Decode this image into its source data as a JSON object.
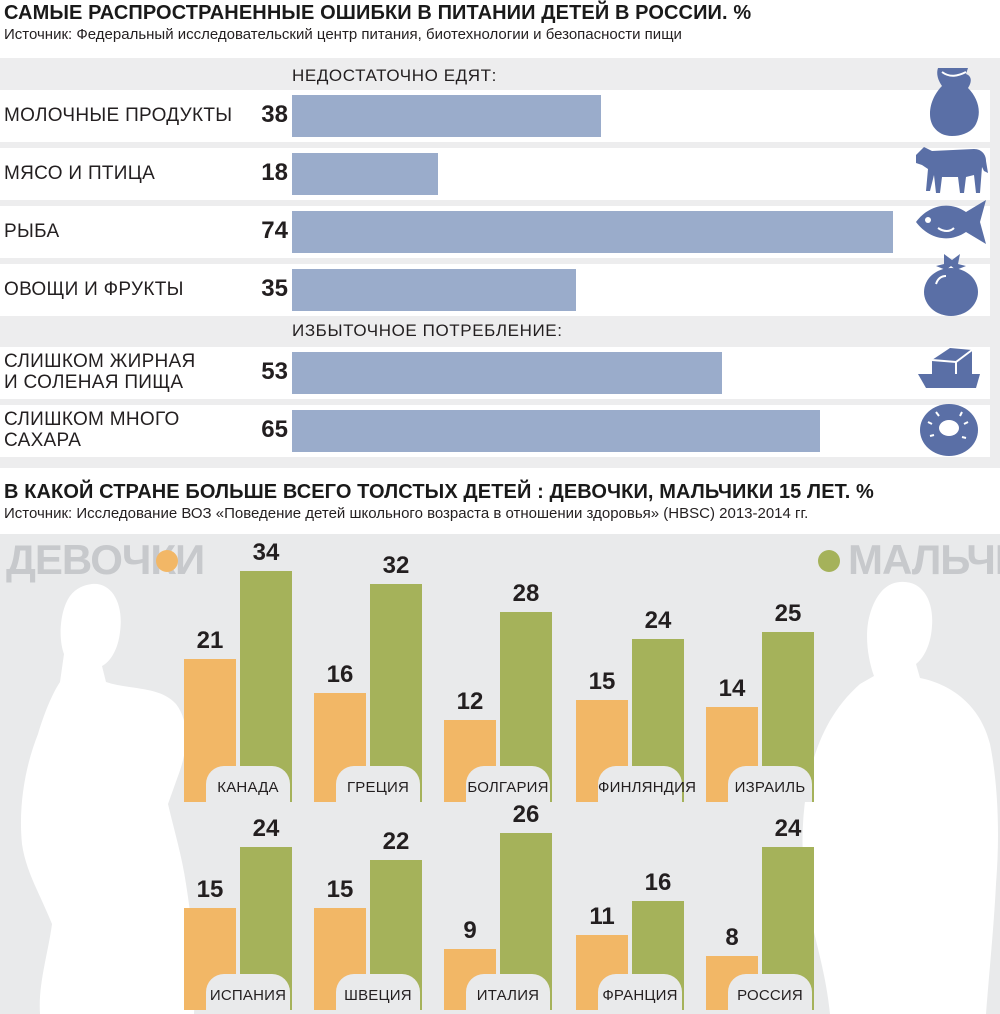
{
  "section1": {
    "title": "САМЫЕ РАСПРОСТРАНЕННЫЕ ОШИБКИ В ПИТАНИИ ДЕТЕЙ В РОССИИ. %",
    "source": "Источник:  Федеральный исследовательский центр питания, биотехнологии и безопасности пищи",
    "group1_header": "НЕДОСТАТОЧНО ЕДЯТ:",
    "group2_header": "ИЗБЫТОЧНОЕ ПОТРЕБЛЕНИЕ:",
    "rows": [
      {
        "label": "МОЛОЧНЫЕ ПРОДУКТЫ",
        "value": "38",
        "icon": "milk-jug-icon"
      },
      {
        "label": "МЯСО И ПТИЦА",
        "value": "18",
        "icon": "cow-icon"
      },
      {
        "label": "РЫБА",
        "value": "74",
        "icon": "fish-icon"
      },
      {
        "label": "ОВОЩИ И ФРУКТЫ",
        "value": "35",
        "icon": "tomato-icon"
      },
      {
        "label": "СЛИШКОМ ЖИРНАЯ\nИ СОЛЕНАЯ ПИЩА",
        "value": "53",
        "icon": "butter-icon"
      },
      {
        "label": "СЛИШКОМ МНОГО\nСАХАРА",
        "value": "65",
        "icon": "donut-icon"
      }
    ]
  },
  "section2": {
    "title": "В КАКОЙ СТРАНЕ БОЛЬШЕ ВСЕГО ТОЛСТЫХ ДЕТЕЙ : ДЕВОЧКИ, МАЛЬЧИКИ 15 ЛЕТ. %",
    "source": "Источник: Исследование ВОЗ «Поведение детей школьного возраста в отношении здоровья» (HBSC) 2013-2014 гг.",
    "legend_girls": "ДЕВОЧКИ",
    "legend_boys": "МАЛЬЧИКИ"
  },
  "colors": {
    "bar_blue": "#9aaccb",
    "icon_blue": "#5a6fa6",
    "girls": "#f2b766",
    "boys": "#a5b25a",
    "silhouette": "#ffffff"
  },
  "chart_data": [
    {
      "type": "bar",
      "orientation": "horizontal",
      "title": "САМЫЕ РАСПРОСТРАНЕННЫЕ ОШИБКИ В ПИТАНИИ ДЕТЕЙ В РОССИИ. %",
      "categories": [
        "МОЛОЧНЫЕ ПРОДУКТЫ",
        "МЯСО И ПТИЦА",
        "РЫБА",
        "ОВОЩИ И ФРУКТЫ",
        "СЛИШКОМ ЖИРНАЯ И СОЛЕНАЯ ПИЩА",
        "СЛИШКОМ МНОГО САХАРА"
      ],
      "values": [
        38,
        18,
        74,
        35,
        53,
        65
      ],
      "xlim": [
        0,
        74
      ],
      "grid": false
    },
    {
      "type": "bar",
      "orientation": "vertical",
      "title": "В КАКОЙ СТРАНЕ БОЛЬШЕ ВСЕГО ТОЛСТЫХ ДЕТЕЙ : ДЕВОЧКИ, МАЛЬЧИКИ 15 ЛЕТ. %",
      "categories": [
        "КАНАДА",
        "ГРЕЦИЯ",
        "БОЛГАРИЯ",
        "ФИНЛЯНДИЯ",
        "ИЗРАИЛЬ",
        "ИСПАНИЯ",
        "ШВЕЦИЯ",
        "ИТАЛИЯ",
        "ФРАНЦИЯ",
        "РОССИЯ"
      ],
      "series": [
        {
          "name": "ДЕВОЧКИ",
          "values": [
            21,
            16,
            12,
            15,
            14,
            15,
            15,
            9,
            11,
            8
          ]
        },
        {
          "name": "МАЛЬЧИКИ",
          "values": [
            34,
            32,
            28,
            24,
            25,
            24,
            22,
            26,
            16,
            24
          ]
        }
      ],
      "legend": "top",
      "grid": false
    }
  ]
}
